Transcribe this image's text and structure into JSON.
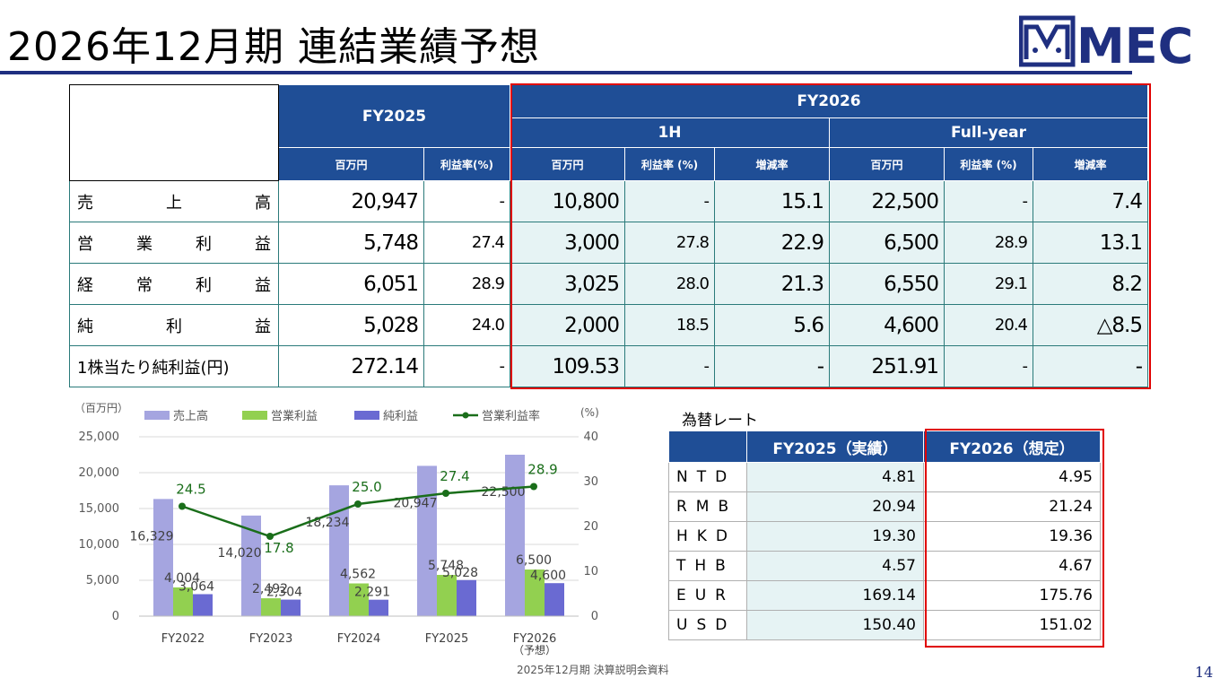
{
  "header": {
    "title": "2026年12月期 連結業績予想",
    "logo": "MMEC"
  },
  "table": {
    "fy2025": "FY2025",
    "fy2026": "FY2026",
    "h1": "1H",
    "full": "Full-year",
    "col_million": "百万円",
    "col_margin_2025": "利益率(%)",
    "col_margin": "利益率 (%)",
    "col_change": "増減率",
    "rows": [
      {
        "label": "売上高",
        "v25": "20,947",
        "m25": "-",
        "v1h": "10,800",
        "m1h": "-",
        "c1h": "15.1",
        "vfy": "22,500",
        "mfy": "-",
        "cfy": "7.4"
      },
      {
        "label": "営業利益",
        "v25": "5,748",
        "m25": "27.4",
        "v1h": "3,000",
        "m1h": "27.8",
        "c1h": "22.9",
        "vfy": "6,500",
        "mfy": "28.9",
        "cfy": "13.1"
      },
      {
        "label": "経常利益",
        "v25": "6,051",
        "m25": "28.9",
        "v1h": "3,025",
        "m1h": "28.0",
        "c1h": "21.3",
        "vfy": "6,550",
        "mfy": "29.1",
        "cfy": "8.2"
      },
      {
        "label": "純利益",
        "v25": "5,028",
        "m25": "24.0",
        "v1h": "2,000",
        "m1h": "18.5",
        "c1h": "5.6",
        "vfy": "4,600",
        "mfy": "20.4",
        "cfy": "△8.5"
      },
      {
        "label": "1株当たり純利益(円)",
        "v25": "272.14",
        "m25": "-",
        "v1h": "109.53",
        "m1h": "-",
        "c1h": "-",
        "vfy": "251.91",
        "mfy": "-",
        "cfy": "-"
      }
    ]
  },
  "fx": {
    "title": "為替レート",
    "col_2025": "FY2025（実績）",
    "col_2026": "FY2026（想定）",
    "rows": [
      {
        "cur": "NTD",
        "a": "4.81",
        "b": "4.95"
      },
      {
        "cur": "RMB",
        "a": "20.94",
        "b": "21.24"
      },
      {
        "cur": "HKD",
        "a": "19.30",
        "b": "19.36"
      },
      {
        "cur": "THB",
        "a": "4.57",
        "b": "4.67"
      },
      {
        "cur": "EUR",
        "a": "169.14",
        "b": "175.76"
      },
      {
        "cur": "USD",
        "a": "150.40",
        "b": "151.02"
      }
    ]
  },
  "footer": {
    "text": "2025年12月期 決算説明会資料",
    "page": "14"
  },
  "chart_data": {
    "type": "bar",
    "categories": [
      "FY2022",
      "FY2023",
      "FY2024",
      "FY2025",
      "FY2026"
    ],
    "category_note": "（予想）",
    "ylabel": "（百万円）",
    "y2label": "(%)",
    "ylim": [
      0,
      25000
    ],
    "yticks": [
      0,
      5000,
      10000,
      15000,
      20000,
      25000
    ],
    "yticklabels": [
      "0",
      "5,000",
      "10,000",
      "15,000",
      "20,000",
      "25,000"
    ],
    "y2lim": [
      0,
      40
    ],
    "y2ticks": [
      0,
      10,
      20,
      30,
      40
    ],
    "series": [
      {
        "name": "売上高",
        "kind": "bar",
        "axis": "left",
        "color": "#a5a5e0",
        "values": [
          16329,
          14020,
          18234,
          20947,
          22500
        ],
        "labels": [
          "16,329",
          "14,020",
          "18,234",
          "20,947",
          "22,500"
        ]
      },
      {
        "name": "営業利益",
        "kind": "bar",
        "axis": "left",
        "color": "#92d050",
        "values": [
          4004,
          2492,
          4562,
          5748,
          6500
        ],
        "labels": [
          "4,004",
          "2,492",
          "4,562",
          "5,748",
          "6,500"
        ]
      },
      {
        "name": "純利益",
        "kind": "bar",
        "axis": "left",
        "color": "#6a6ad2",
        "values": [
          3064,
          2304,
          2291,
          5028,
          4600
        ],
        "labels": [
          "3,064",
          "2,304",
          "2,291",
          "5,028",
          "4,600"
        ]
      },
      {
        "name": "営業利益率",
        "kind": "line",
        "axis": "right",
        "color": "#1a6e1a",
        "values": [
          24.5,
          17.8,
          25.0,
          27.4,
          28.9
        ],
        "labels": [
          "24.5",
          "17.8",
          "25.0",
          "27.4",
          "28.9"
        ]
      }
    ],
    "legend": "top",
    "grid": true
  }
}
